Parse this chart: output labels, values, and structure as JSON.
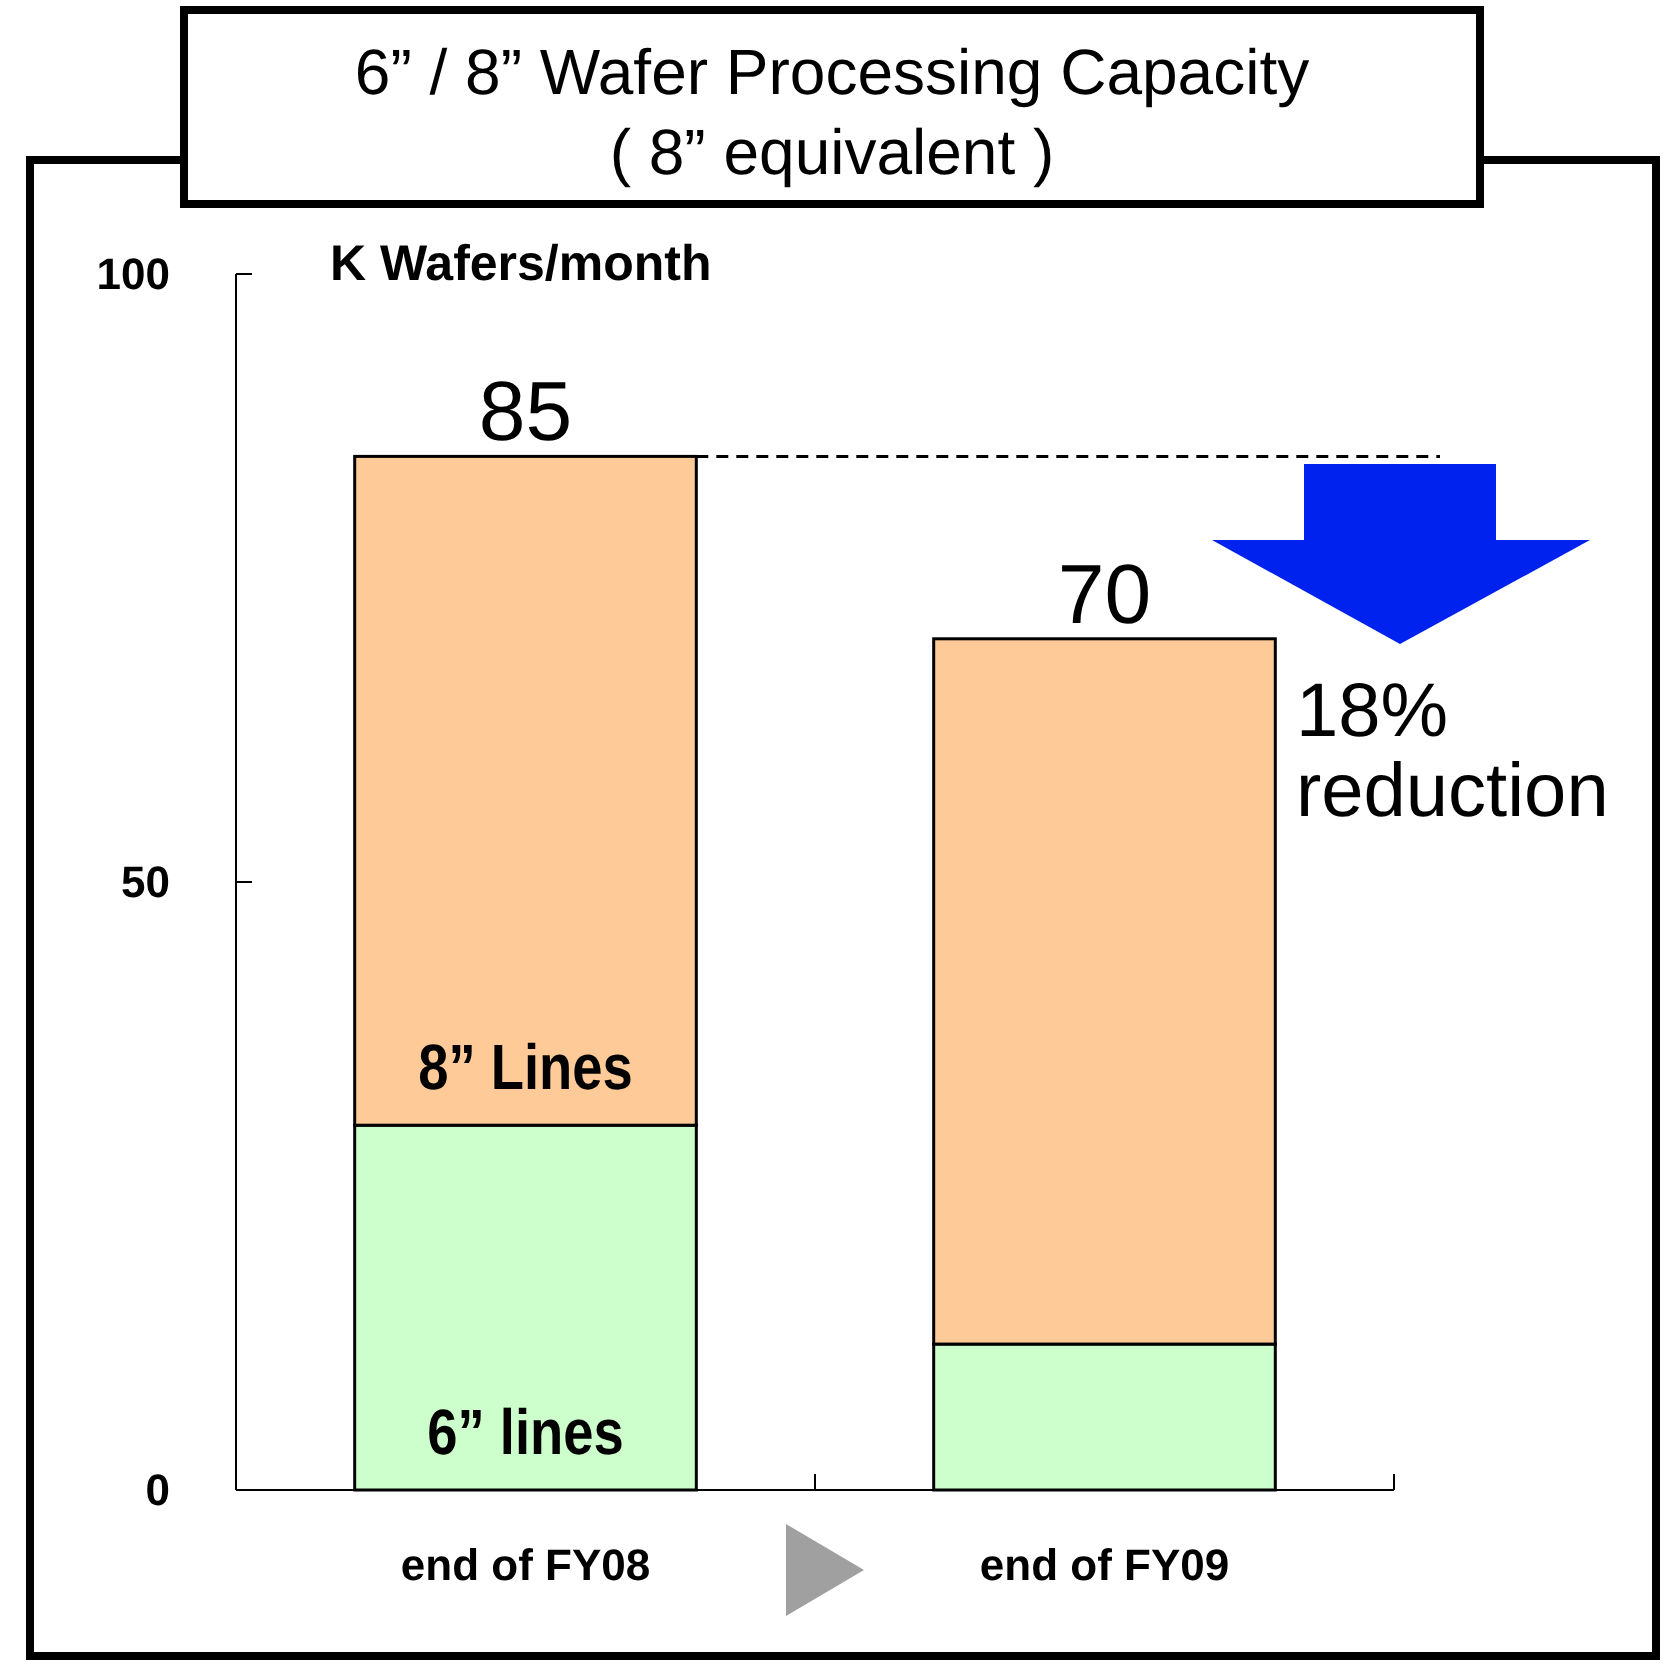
{
  "chart_data": {
    "type": "bar",
    "title": "6” / 8” Wafer Processing Capacity",
    "subtitle": "( 8” equivalent )",
    "ylabel": "K Wafers/month",
    "categories": [
      "end of FY08",
      "end of FY09"
    ],
    "series": [
      {
        "name": "6” lines",
        "color": "#ccffcc",
        "values": [
          30,
          12
        ]
      },
      {
        "name": "8” Lines",
        "color": "#fdca98",
        "values": [
          55,
          58
        ]
      }
    ],
    "stacked": true,
    "totals": [
      "85",
      "70"
    ],
    "ylim": [
      0,
      100
    ],
    "yticks": [
      0,
      50,
      100
    ],
    "grid": false,
    "ref_lines": [
      {
        "axis": "y",
        "value": 85,
        "line_style": "dashed",
        "color": "#000000"
      }
    ],
    "annotations": [
      "18% reduction"
    ]
  }
}
